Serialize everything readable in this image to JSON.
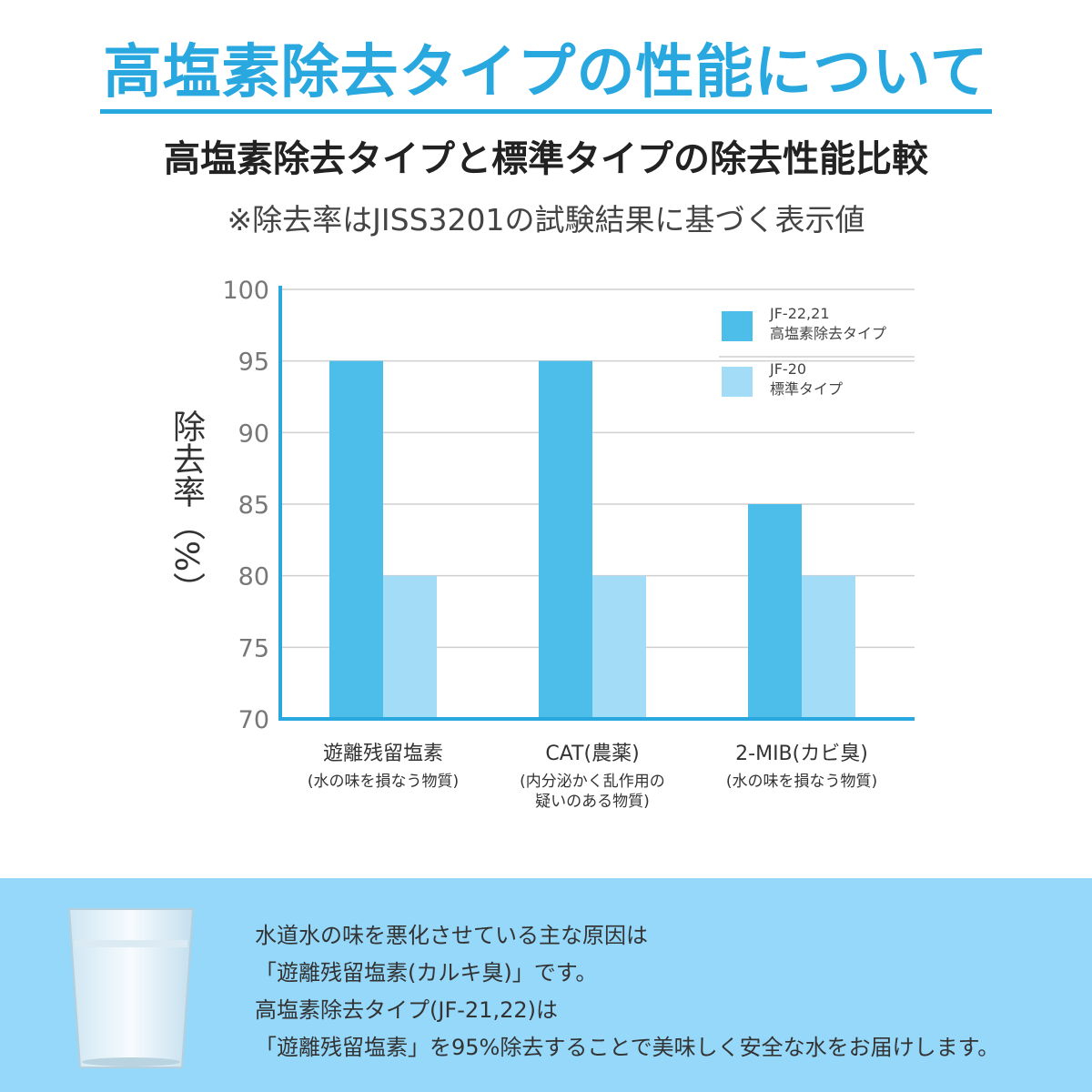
{
  "header": {
    "title": "高塩素除去タイプの性能について",
    "subtitle": "高塩素除去タイプと標準タイプの除去性能比較",
    "note": "※除去率はJISS3201の試験結果に基づく表示値"
  },
  "colors": {
    "accent": "#29a8e0",
    "series1": "#4dbde9",
    "series2": "#a3dcf7",
    "panel": "#95d8fa"
  },
  "chart_data": {
    "type": "bar",
    "title": "高塩素除去タイプと標準タイプの除去性能比較",
    "ylabel": "除去率（%）",
    "xlabel": "",
    "ylim": [
      70,
      100
    ],
    "yticks": [
      70,
      75,
      80,
      85,
      90,
      95,
      100
    ],
    "grid": true,
    "legend_position": "top-right",
    "categories": [
      {
        "name": "遊離残留塩素",
        "sub": [
          "(水の味を損なう物質)"
        ]
      },
      {
        "name": "CAT(農薬)",
        "sub": [
          "(内分泌かく乱作用の",
          "疑いのある物質)"
        ]
      },
      {
        "name": "2-MIB(カビ臭)",
        "sub": [
          "(水の味を損なう物質)"
        ]
      }
    ],
    "series": [
      {
        "name": "JF-22,21",
        "desc": "高塩素除去タイプ",
        "values": [
          95,
          95,
          85
        ]
      },
      {
        "name": "JF-20",
        "desc": "標準タイプ",
        "values": [
          80,
          80,
          80
        ]
      }
    ]
  },
  "panel": {
    "lines": [
      "水道水の味を悪化させている主な原因は",
      "「遊離残留塩素(カルキ臭)」です。",
      "高塩素除去タイプ(JF-21,22)は",
      "「遊離残留塩素」を95%除去することで美味しく安全な水をお届けします。"
    ]
  }
}
